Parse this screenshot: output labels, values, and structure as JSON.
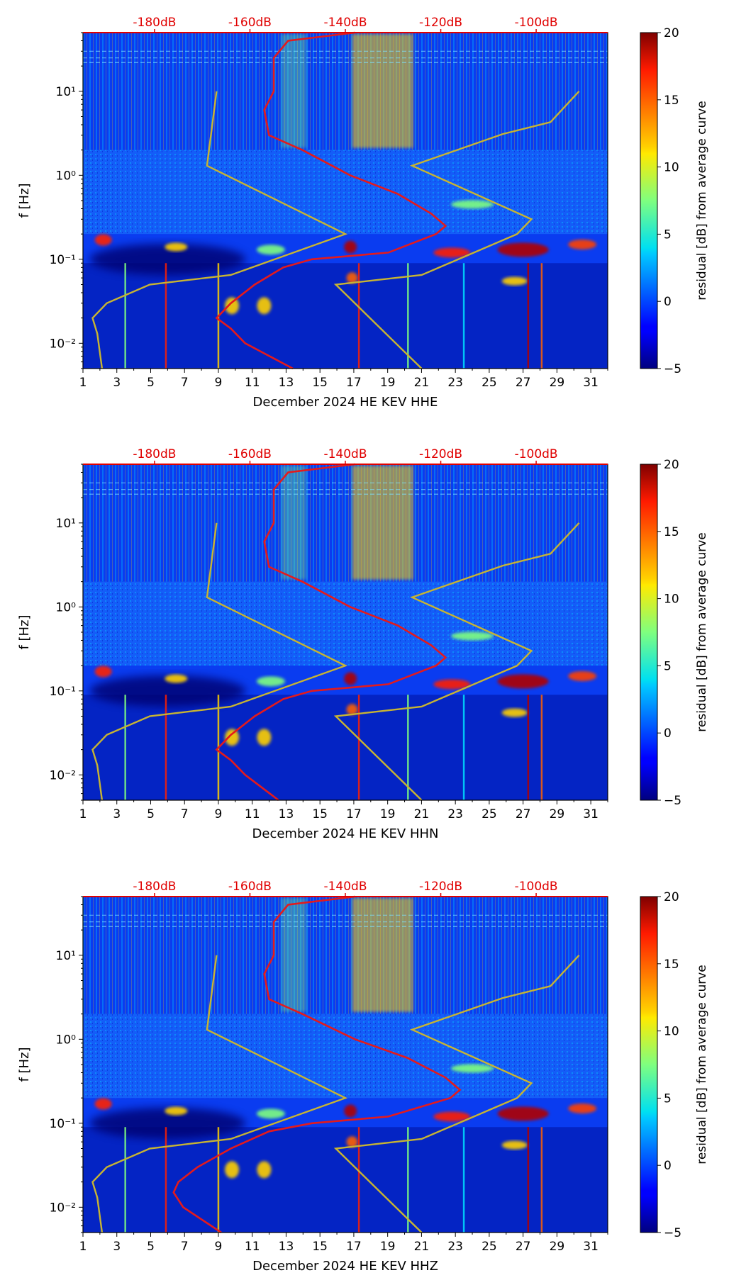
{
  "figure": {
    "colorbar_label": "residual [dB] from average curve",
    "colorbar_ticks": [
      "20",
      "15",
      "10",
      "5",
      "0",
      "−5"
    ],
    "colorbar_range": [
      -5,
      20
    ],
    "ylabel": "f [Hz]",
    "y_ticks": [
      "10⁻²",
      "10⁻¹",
      "10⁰",
      "10¹"
    ],
    "x_ticks": [
      "1",
      "3",
      "5",
      "7",
      "9",
      "11",
      "13",
      "15",
      "17",
      "19",
      "21",
      "23",
      "25",
      "27",
      "29",
      "31"
    ],
    "top_ticks": [
      "-180dB",
      "-160dB",
      "-140dB",
      "-120dB",
      "-100dB"
    ],
    "colors": {
      "average_curve": "#e41a1c",
      "noise_model": "#c8b432",
      "top_axis_text": "#e00000"
    }
  },
  "chart_data": [
    {
      "type": "heatmap",
      "xlabel": "December 2024 HE KEV  HHE",
      "ylabel": "f [Hz]",
      "xlim": [
        1,
        32
      ],
      "ylim": [
        0.005,
        50
      ],
      "yscale": "log",
      "top_axis": {
        "ticks_dB": [
          -180,
          -160,
          -140,
          -120,
          -100
        ]
      },
      "average_curve": {
        "f": [
          50,
          40,
          25,
          10,
          6,
          3,
          2,
          1,
          0.6,
          0.35,
          0.25,
          0.2,
          0.12,
          0.1,
          0.08,
          0.05,
          0.03,
          0.02,
          0.015,
          0.01,
          0.005
        ],
        "dB": [
          -138,
          -152,
          -155,
          -155,
          -157,
          -156,
          -149,
          -139,
          -129,
          -122,
          -119,
          -121,
          -131,
          -147,
          -153,
          -159,
          -164,
          -167,
          -164,
          -161,
          -151
        ]
      },
      "noise_model": {
        "f": [
          10,
          1.3,
          0.2,
          0.065,
          0.05,
          0.03,
          0.02,
          0.013,
          0.005
        ],
        "dB": [
          -167,
          -169,
          -140,
          -164,
          -181,
          -190,
          -193,
          -192,
          -191
        ]
      },
      "noise_model_high": {
        "f": [
          10,
          4.3,
          3.1,
          1.3,
          0.3,
          0.2,
          0.065,
          0.05,
          0.005
        ],
        "dB": [
          -91,
          -97,
          -107,
          -126,
          -101,
          -104,
          -124,
          -142,
          -124
        ]
      }
    },
    {
      "type": "heatmap",
      "xlabel": "December 2024 HE KEV  HHN",
      "ylabel": "f [Hz]",
      "xlim": [
        1,
        32
      ],
      "ylim": [
        0.005,
        50
      ],
      "yscale": "log",
      "top_axis": {
        "ticks_dB": [
          -180,
          -160,
          -140,
          -120,
          -100
        ]
      },
      "average_curve": {
        "f": [
          50,
          40,
          25,
          10,
          6,
          3,
          2,
          1,
          0.6,
          0.35,
          0.25,
          0.2,
          0.12,
          0.1,
          0.08,
          0.05,
          0.03,
          0.02,
          0.015,
          0.01,
          0.005
        ],
        "dB": [
          -138,
          -152,
          -155,
          -155,
          -157,
          -156,
          -149,
          -139,
          -129,
          -122,
          -119,
          -121,
          -131,
          -147,
          -153,
          -159,
          -164,
          -167,
          -164,
          -161,
          -154
        ]
      },
      "noise_model": {
        "f": [
          10,
          1.3,
          0.2,
          0.065,
          0.05,
          0.03,
          0.02,
          0.013,
          0.005
        ],
        "dB": [
          -167,
          -169,
          -140,
          -164,
          -181,
          -190,
          -193,
          -192,
          -191
        ]
      },
      "noise_model_high": {
        "f": [
          10,
          4.3,
          3.1,
          1.3,
          0.3,
          0.2,
          0.065,
          0.05,
          0.005
        ],
        "dB": [
          -91,
          -97,
          -107,
          -126,
          -101,
          -104,
          -124,
          -142,
          -124
        ]
      }
    },
    {
      "type": "heatmap",
      "xlabel": "December 2024 HE KEV  HHZ",
      "ylabel": "f [Hz]",
      "xlim": [
        1,
        32
      ],
      "ylim": [
        0.005,
        50
      ],
      "yscale": "log",
      "top_axis": {
        "ticks_dB": [
          -180,
          -160,
          -140,
          -120,
          -100
        ]
      },
      "average_curve": {
        "f": [
          50,
          40,
          25,
          10,
          6,
          3,
          2,
          1,
          0.6,
          0.35,
          0.25,
          0.2,
          0.12,
          0.1,
          0.08,
          0.05,
          0.03,
          0.02,
          0.015,
          0.01,
          0.005
        ],
        "dB": [
          -138,
          -152,
          -155,
          -155,
          -157,
          -156,
          -149,
          -138,
          -127,
          -119,
          -116,
          -118,
          -131,
          -147,
          -156,
          -164,
          -171,
          -175,
          -176,
          -174,
          -166
        ]
      },
      "noise_model": {
        "f": [
          10,
          1.3,
          0.2,
          0.065,
          0.05,
          0.03,
          0.02,
          0.013,
          0.005
        ],
        "dB": [
          -167,
          -169,
          -140,
          -164,
          -181,
          -190,
          -193,
          -192,
          -191
        ]
      },
      "noise_model_high": {
        "f": [
          10,
          4.3,
          3.1,
          1.3,
          0.3,
          0.2,
          0.065,
          0.05,
          0.005
        ],
        "dB": [
          -91,
          -97,
          -107,
          -126,
          -101,
          -104,
          -124,
          -142,
          -124
        ]
      }
    }
  ]
}
